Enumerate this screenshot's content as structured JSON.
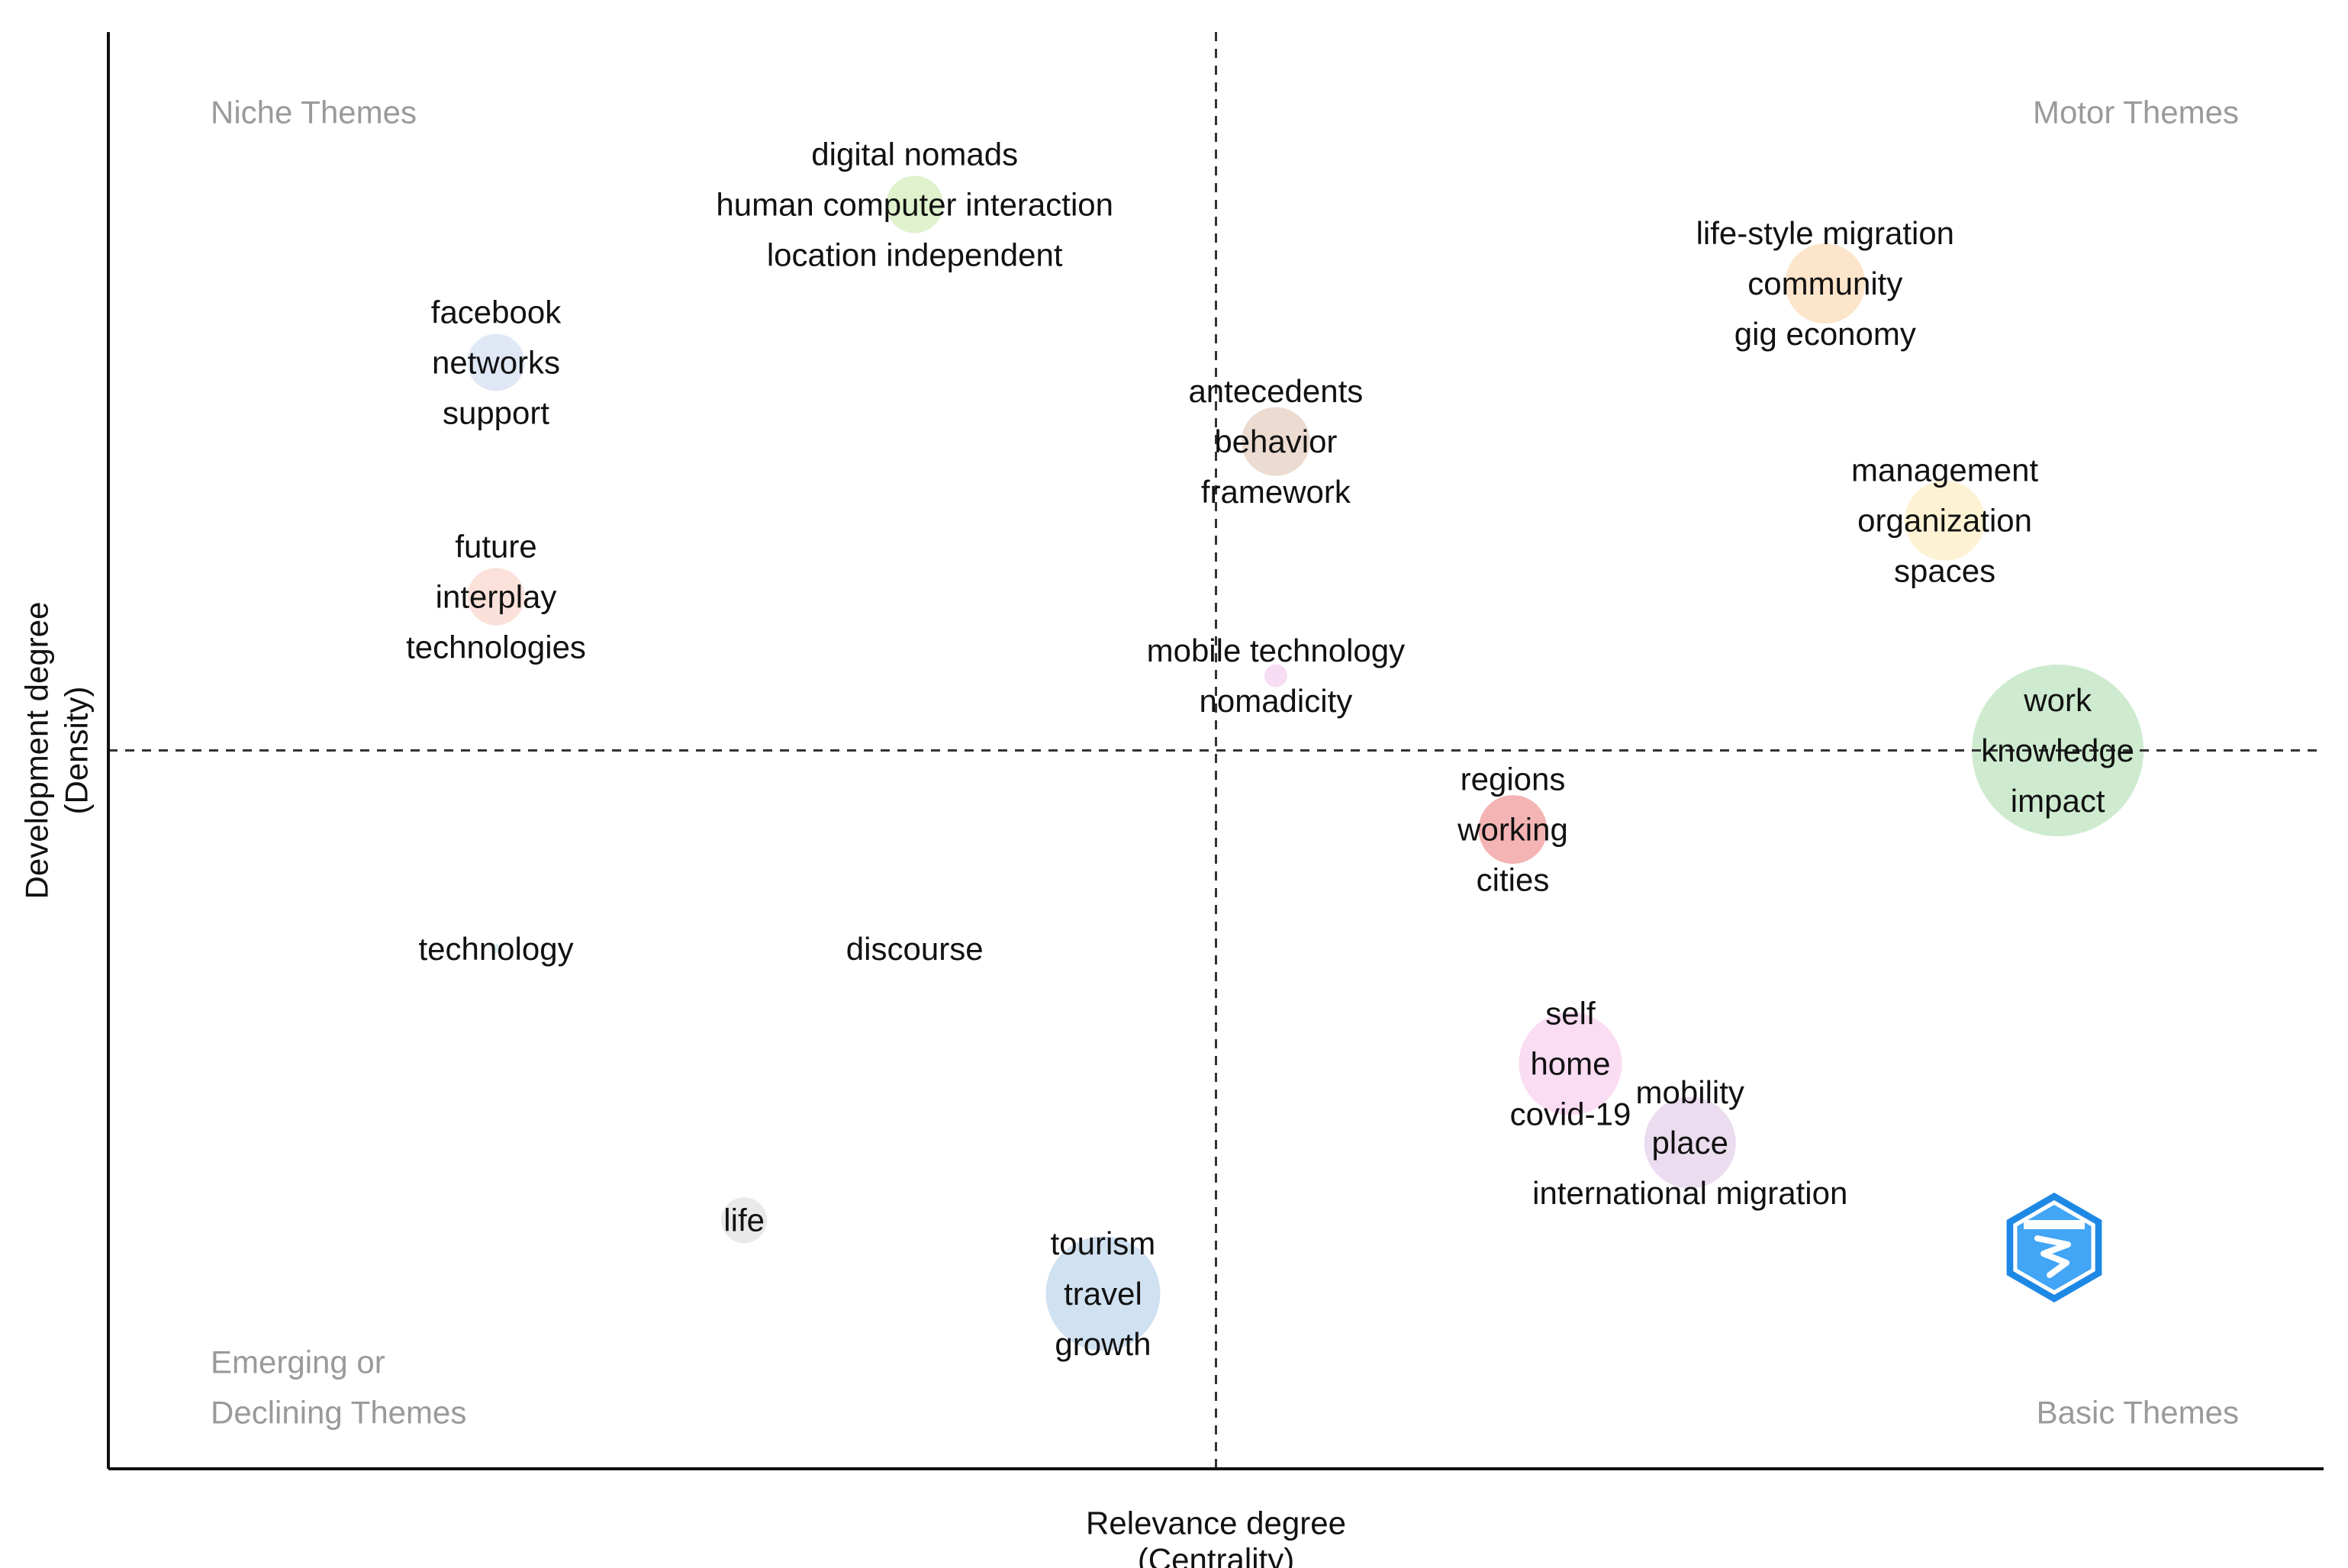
{
  "chart_data": {
    "type": "scatter",
    "subtype": "thematic-map",
    "xlabel": [
      "Relevance degree",
      "(Centrality)"
    ],
    "ylabel": [
      "Development degree",
      "(Density)"
    ],
    "xlim": [
      0,
      100
    ],
    "ylim": [
      0,
      100
    ],
    "x_divider": 50,
    "y_divider": 50,
    "quadrants": {
      "top_left": [
        "Niche Themes"
      ],
      "top_right": [
        "Motor Themes"
      ],
      "bottom_left": [
        "Emerging or",
        "Declining Themes"
      ],
      "bottom_right": [
        "Basic Themes"
      ]
    },
    "clusters": [
      {
        "words": [
          "digital nomads",
          "human computer interaction",
          "location independent"
        ],
        "x": 36.4,
        "y": 88.0,
        "size": 2.5,
        "color": "#d9f0c4",
        "label_anchor": "middle"
      },
      {
        "words": [
          "facebook",
          "networks",
          "support"
        ],
        "x": 17.5,
        "y": 77.0,
        "size": 2.5,
        "color": "#dbe3f3",
        "label_anchor": "middle"
      },
      {
        "words": [
          "future",
          "interplay",
          "technologies"
        ],
        "x": 17.5,
        "y": 60.7,
        "size": 2.5,
        "color": "#fadcd2",
        "label_anchor": "middle"
      },
      {
        "words": [
          "antecedents",
          "behavior",
          "framework"
        ],
        "x": 52.7,
        "y": 71.5,
        "size": 3.0,
        "color": "#e8d5c8",
        "label_anchor": "middle"
      },
      {
        "words": [
          "mobile technology",
          "nomadicity"
        ],
        "x": 52.7,
        "y": 55.2,
        "size": 1.0,
        "color": "#f6d7f1",
        "label_anchor": "middle"
      },
      {
        "words": [
          "life-style migration",
          "community",
          "gig economy"
        ],
        "x": 77.5,
        "y": 82.5,
        "size": 3.5,
        "color": "#fde0c2",
        "label_anchor": "middle"
      },
      {
        "words": [
          "management",
          "organization",
          "spaces"
        ],
        "x": 82.9,
        "y": 66.0,
        "size": 3.5,
        "color": "#fdf1cc",
        "label_anchor": "middle"
      },
      {
        "words": [
          "work",
          "knowledge",
          "impact"
        ],
        "x": 88.0,
        "y": 50.0,
        "size": 7.5,
        "color": "#c5e8c8",
        "label_anchor": "middle"
      },
      {
        "words": [
          "regions",
          "working",
          "cities"
        ],
        "x": 63.4,
        "y": 44.5,
        "size": 3.0,
        "color": "#f2a7a7",
        "label_anchor": "middle"
      },
      {
        "words": [
          "technology"
        ],
        "x": 17.5,
        "y": 36.2,
        "size": 0.3,
        "color": "#d2ecec",
        "label_anchor": "middle"
      },
      {
        "words": [
          "discourse"
        ],
        "x": 36.4,
        "y": 36.2,
        "size": 0.5,
        "color": "#f0f0f0",
        "label_anchor": "middle"
      },
      {
        "words": [
          "self",
          "home",
          "covid-19"
        ],
        "x": 66.0,
        "y": 28.2,
        "size": 4.5,
        "color": "#f9d6f1",
        "label_anchor": "middle"
      },
      {
        "words": [
          "mobility",
          "place",
          "international migration"
        ],
        "x": 71.4,
        "y": 22.7,
        "size": 4.0,
        "color": "#e8d6ec",
        "label_anchor": "middle"
      },
      {
        "words": [
          "life"
        ],
        "x": 28.7,
        "y": 17.3,
        "size": 2.0,
        "color": "#e5e5e5",
        "label_anchor": "middle"
      },
      {
        "words": [
          "tourism",
          "travel",
          "growth"
        ],
        "x": 44.9,
        "y": 12.2,
        "size": 5.0,
        "color": "#c8dcef",
        "label_anchor": "middle"
      }
    ]
  },
  "logo": {
    "name": "bibliometrix-logo",
    "colors": {
      "outer": "#1e88e5",
      "inner": "#42a5f5",
      "detail": "#ffffff"
    }
  }
}
